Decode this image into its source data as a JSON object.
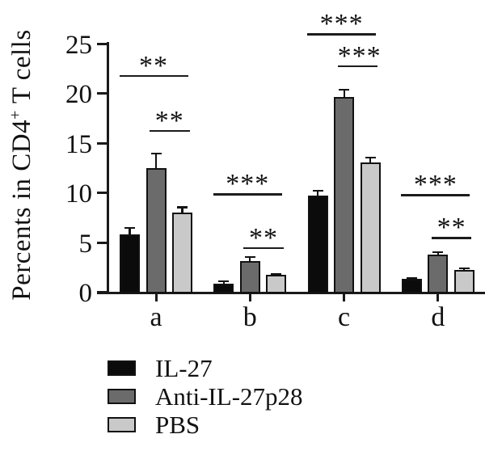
{
  "figure": {
    "ylabel_pre": "Percents in CD4",
    "ylabel_sup": "+",
    "ylabel_post": " T cells"
  },
  "chart_data": {
    "type": "bar",
    "title": "",
    "xlabel": "",
    "ylabel": "Percents in CD4+ T cells",
    "categories": [
      "a",
      "b",
      "c",
      "d"
    ],
    "series": [
      {
        "name": "IL-27",
        "color": "#0b0b0b",
        "values": [
          5.8,
          0.85,
          9.7,
          1.3
        ],
        "errors": [
          0.6,
          0.2,
          0.45,
          0.12
        ]
      },
      {
        "name": "Anti-IL-27p28",
        "color": "#6b6b6b",
        "values": [
          12.4,
          3.1,
          19.6,
          3.7
        ],
        "errors": [
          1.5,
          0.4,
          0.7,
          0.3
        ]
      },
      {
        "name": "PBS",
        "color": "#c9c9c9",
        "values": [
          8.0,
          1.7,
          13.0,
          2.2
        ],
        "errors": [
          0.5,
          0.12,
          0.5,
          0.15
        ]
      }
    ],
    "ylim": [
      0,
      25
    ],
    "yticks": [
      0,
      5,
      10,
      15,
      20,
      25
    ],
    "grid": false,
    "error_bars": "upper",
    "legend_position": "bottom-left",
    "significance": [
      {
        "group": "a",
        "bars": [
          0,
          2
        ],
        "label": "**",
        "y": 21.8
      },
      {
        "group": "a",
        "bars": [
          1,
          2
        ],
        "label": "**",
        "y": 16.3
      },
      {
        "group": "b",
        "bars": [
          0,
          2
        ],
        "label": "***",
        "y": 9.9
      },
      {
        "group": "b",
        "bars": [
          1,
          2
        ],
        "label": "**",
        "y": 4.5
      },
      {
        "group": "c",
        "bars": [
          0,
          2
        ],
        "label": "***",
        "y": 26.0
      },
      {
        "group": "c",
        "bars": [
          1,
          2
        ],
        "label": "***",
        "y": 22.8
      },
      {
        "group": "d",
        "bars": [
          0,
          2
        ],
        "label": "***",
        "y": 9.8
      },
      {
        "group": "d",
        "bars": [
          1,
          2
        ],
        "label": "**",
        "y": 5.5
      }
    ],
    "legend": [
      {
        "label": "IL-27",
        "color": "#0b0b0b"
      },
      {
        "label": "Anti-IL-27p28",
        "color": "#6b6b6b"
      },
      {
        "label": "PBS",
        "color": "#c9c9c9"
      }
    ]
  }
}
